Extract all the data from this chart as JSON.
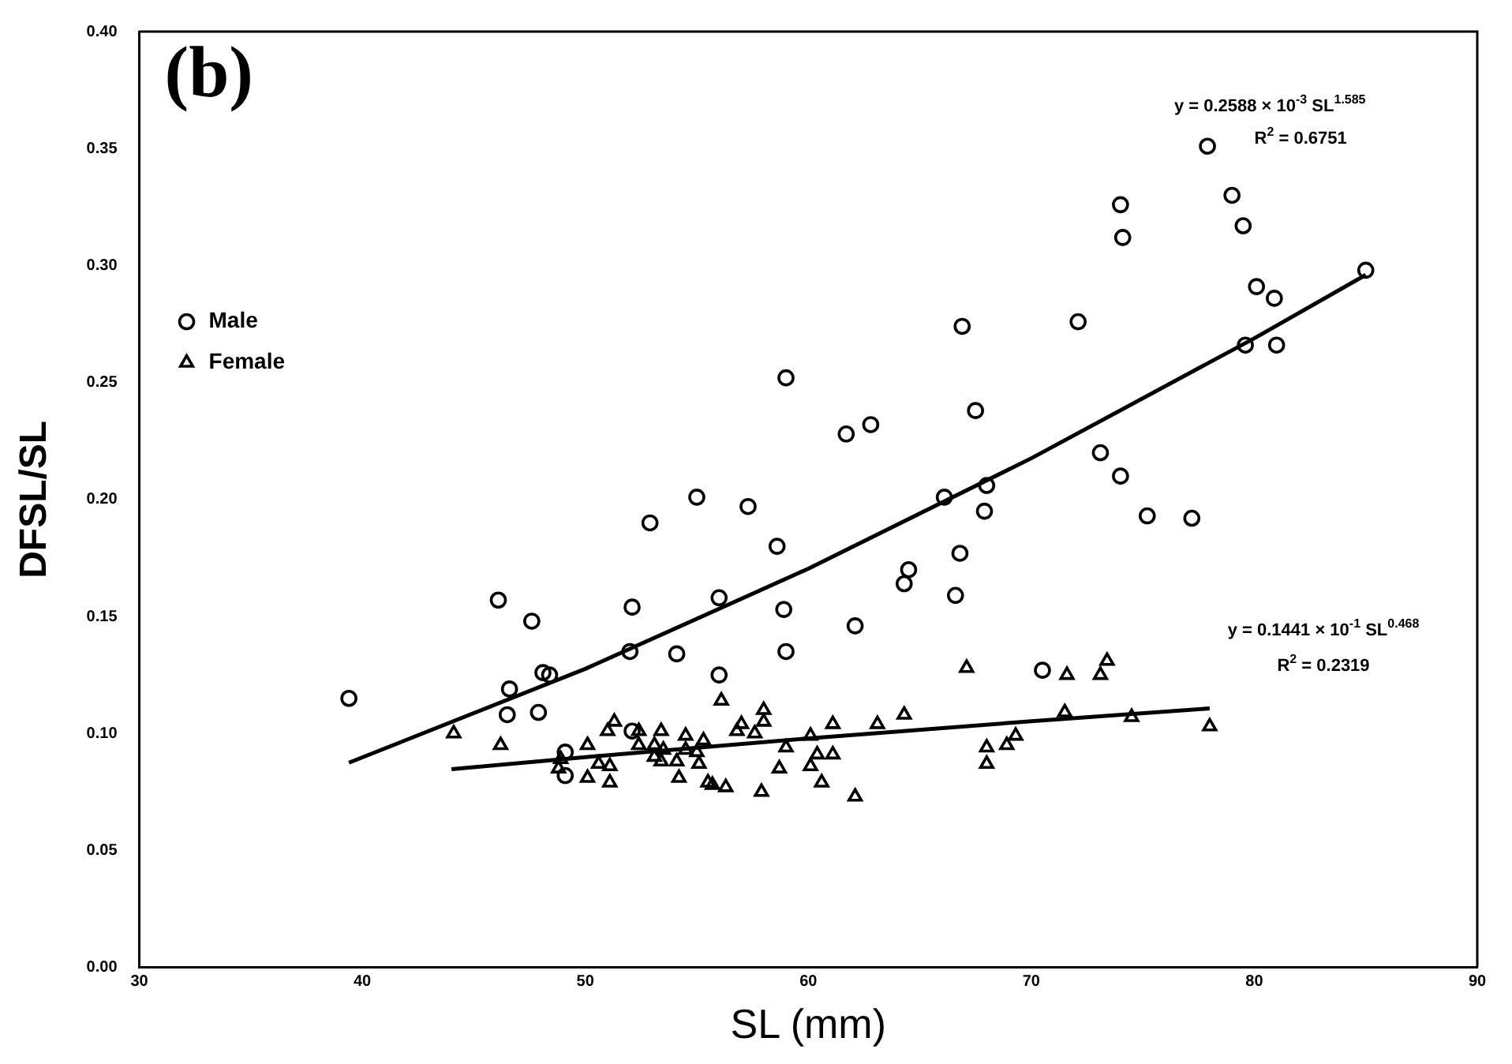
{
  "chart_data": {
    "type": "scatter",
    "title": "(b)",
    "xlabel": "SL (mm)",
    "ylabel": "DFSL/SL",
    "xlim": [
      30,
      90
    ],
    "xticks": [
      30,
      40,
      50,
      60,
      70,
      80,
      90
    ],
    "ylim": [
      0,
      0.4
    ],
    "yticks": [
      {
        "value": 0,
        "label": "0.00"
      },
      0.05,
      {
        "value": 0.1,
        "label": "0.10"
      },
      0.15,
      {
        "value": 0.2,
        "label": "0.20"
      },
      0.25,
      {
        "value": 0.3,
        "label": "0.30"
      },
      0.35,
      {
        "value": 0.4,
        "label": "0.40"
      }
    ],
    "grid": false,
    "legend": "top left",
    "annotations": [
      "y = 0.2588 × 10$^{-3}$ SL$^{1.585}$",
      "R$^{2}$ = 0.6751",
      "y = 0.1441 × 10$^{-1}$ SL$^{0.468}$",
      "R$^{2}$ = 0.2319"
    ],
    "series": [
      {
        "name": "Male",
        "marker": "circle",
        "color": "#000000",
        "x": [
          39.4,
          46.1,
          46.6,
          46.5,
          47.6,
          47.9,
          48.1,
          48.4,
          52.9,
          55.0,
          57.3,
          58.6,
          52.1,
          56.0,
          58.9,
          62.1,
          52.0,
          54.1,
          59.0,
          56.0,
          52.1,
          49.1,
          49.1,
          66.9,
          59.0,
          61.7,
          62.8,
          67.5,
          85.0,
          80.1,
          80.9,
          79.6,
          81.0,
          72.1,
          73.1,
          74.0,
          75.2,
          77.2,
          66.1,
          68.0,
          67.9,
          66.8,
          64.5,
          64.3,
          66.6,
          70.5,
          77.9,
          74.0,
          74.1,
          79.0,
          79.5
        ],
        "values": [
          0.115,
          0.157,
          0.119,
          0.108,
          0.148,
          0.109,
          0.126,
          0.125,
          0.19,
          0.201,
          0.197,
          0.18,
          0.154,
          0.158,
          0.153,
          0.146,
          0.135,
          0.134,
          0.135,
          0.125,
          0.101,
          0.092,
          0.082,
          0.274,
          0.252,
          0.228,
          0.232,
          0.238,
          0.298,
          0.291,
          0.286,
          0.266,
          0.266,
          0.276,
          0.22,
          0.21,
          0.193,
          0.192,
          0.201,
          0.206,
          0.195,
          0.177,
          0.17,
          0.164,
          0.159,
          0.127,
          0.351,
          0.326,
          0.312,
          0.33,
          0.317
        ]
      },
      {
        "name": "Female",
        "marker": "triangle",
        "color": "#000000",
        "x": [
          44.1,
          46.2,
          50.1,
          51.3,
          51.0,
          52.4,
          53.4,
          54.5,
          55.3,
          56.1,
          57.0,
          56.8,
          58.0,
          58.0,
          57.6,
          59.0,
          60.1,
          61.1,
          63.1,
          60.4,
          61.1,
          58.7,
          60.1,
          60.6,
          62.1,
          57.9,
          56.3,
          55.5,
          55.7,
          54.2,
          53.1,
          53.4,
          53.5,
          54.1,
          54.5,
          55.1,
          55.0,
          50.6,
          51.1,
          51.1,
          50.1,
          48.9,
          48.8,
          52.4,
          53.1,
          67.1,
          71.6,
          73.1,
          73.4,
          64.3,
          71.5,
          74.5,
          78.0,
          68.0,
          68.9,
          69.3,
          68.0
        ],
        "values": [
          0.1,
          0.095,
          0.095,
          0.105,
          0.101,
          0.101,
          0.101,
          0.099,
          0.097,
          0.114,
          0.104,
          0.101,
          0.11,
          0.105,
          0.1,
          0.094,
          0.099,
          0.104,
          0.104,
          0.091,
          0.091,
          0.085,
          0.086,
          0.079,
          0.073,
          0.075,
          0.077,
          0.079,
          0.078,
          0.081,
          0.09,
          0.088,
          0.093,
          0.088,
          0.093,
          0.087,
          0.092,
          0.087,
          0.086,
          0.079,
          0.081,
          0.089,
          0.085,
          0.095,
          0.095,
          0.128,
          0.125,
          0.125,
          0.131,
          0.108,
          0.109,
          0.107,
          0.103,
          0.094,
          0.095,
          0.099,
          0.087
        ]
      },
      {
        "type": "line",
        "marker": "none",
        "line_style": "solid",
        "color": "#000000",
        "x": [
          39.4,
          50,
          60,
          70,
          80,
          85
        ],
        "values": [
          0.0875,
          0.1276,
          0.1704,
          0.2176,
          0.2689,
          0.296
        ]
      },
      {
        "type": "line",
        "marker": "none",
        "line_style": "solid",
        "color": "#000000",
        "x": [
          44,
          50,
          60,
          70,
          78
        ],
        "values": [
          0.0847,
          0.0899,
          0.0979,
          0.1052,
          0.1107
        ]
      }
    ]
  }
}
